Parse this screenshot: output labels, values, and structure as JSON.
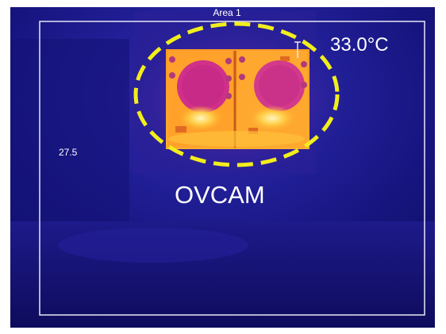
{
  "thermal_view": {
    "area_label": "Area 1",
    "max_temperature": "33.0°C",
    "scale_value": "27.5",
    "object_label": "OVCAM"
  },
  "colors": {
    "background_cold": "#1a1a8a",
    "highlight_ring": "#f2ee1c",
    "hot_core": "#ffd84a",
    "warm": "#ff8a1e"
  }
}
